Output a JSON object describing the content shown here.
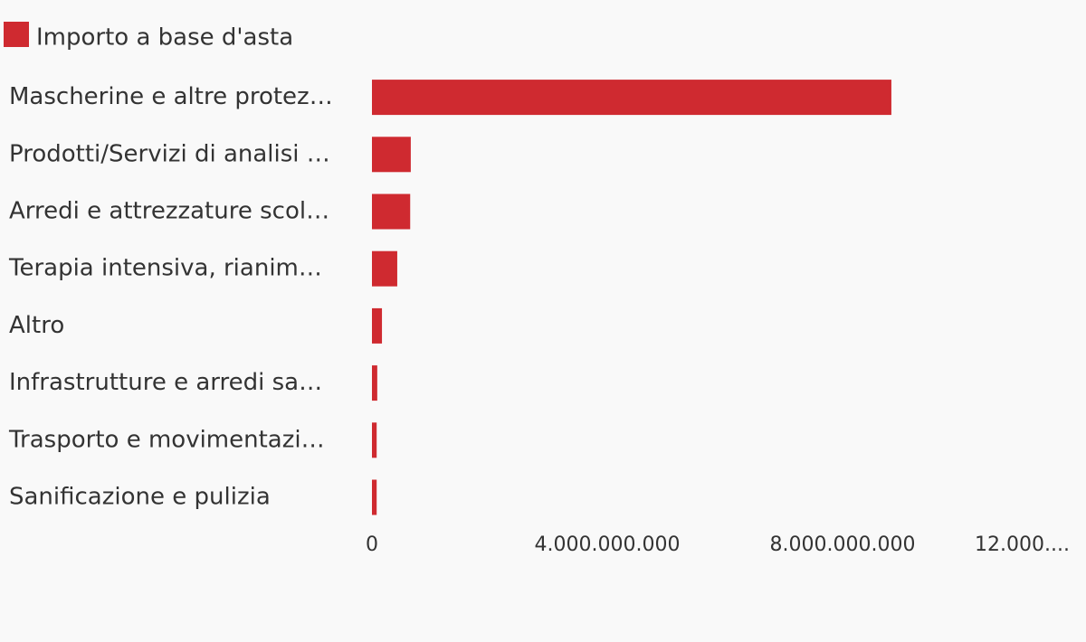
{
  "chart_data": {
    "type": "bar",
    "orientation": "horizontal",
    "series": [
      {
        "name": "Importo a base d'asta",
        "color": "#cf2a30",
        "values": [
          8830000000,
          660000000,
          650000000,
          430000000,
          170000000,
          90000000,
          80000000,
          80000000
        ]
      }
    ],
    "categories": [
      "Mascherine e altre protez…",
      "Prodotti/Servizi di analisi …",
      "Arredi e attrezzature scol…",
      "Terapia intensiva, rianim…",
      "Altro",
      "Infrastrutture e arredi sa…",
      "Trasporto e movimentazi…",
      "Sanificazione e pulizia"
    ],
    "xlim": [
      0,
      12000000000
    ],
    "xticks": [
      0,
      {
        "value": 4000000000,
        "label": "4.000.000.000"
      },
      {
        "value": 8000000000,
        "label": "8.000.000.000"
      },
      {
        "value": 12000000000,
        "label": "12.000...."
      }
    ],
    "grid": false
  }
}
